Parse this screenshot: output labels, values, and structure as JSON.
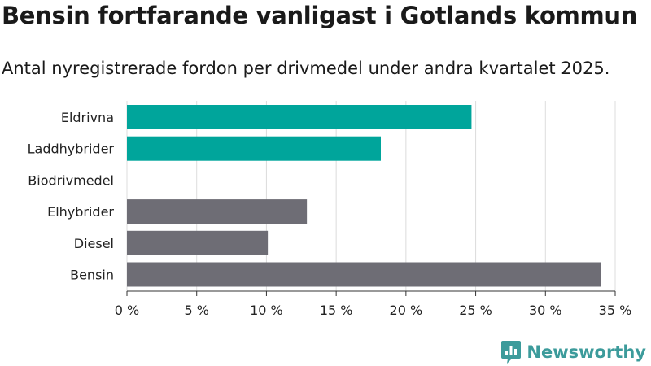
{
  "header": {
    "title": "Bensin fortfarande vanligast i Gotlands kommun",
    "subtitle": "Antal nyregistrerade fordon per drivmedel under andra kvartalet 2025."
  },
  "brand": {
    "name": "Newsworthy",
    "icon": "newsworthy-logo-icon",
    "color": "#3c9b9b"
  },
  "chart_data": {
    "type": "bar",
    "orientation": "horizontal",
    "title": "Bensin fortfarande vanligast i Gotlands kommun",
    "subtitle": "Antal nyregistrerade fordon per drivmedel under andra kvartalet 2025.",
    "categories": [
      "Eldrivna",
      "Laddhybrider",
      "Biodrivmedel",
      "Elhybrider",
      "Diesel",
      "Bensin"
    ],
    "values": [
      24.7,
      18.2,
      0,
      12.9,
      10.1,
      34.0
    ],
    "colors": [
      "#00a59b",
      "#00a59b",
      "#00a59b",
      "#6e6d75",
      "#6e6d75",
      "#6e6d75"
    ],
    "x_ticks": [
      "0 %",
      "5 %",
      "10 %",
      "15 %",
      "20 %",
      "25 %",
      "30 %",
      "35 %"
    ],
    "xlim": [
      0,
      35
    ],
    "grid": true,
    "xlabel": "",
    "ylabel": ""
  }
}
